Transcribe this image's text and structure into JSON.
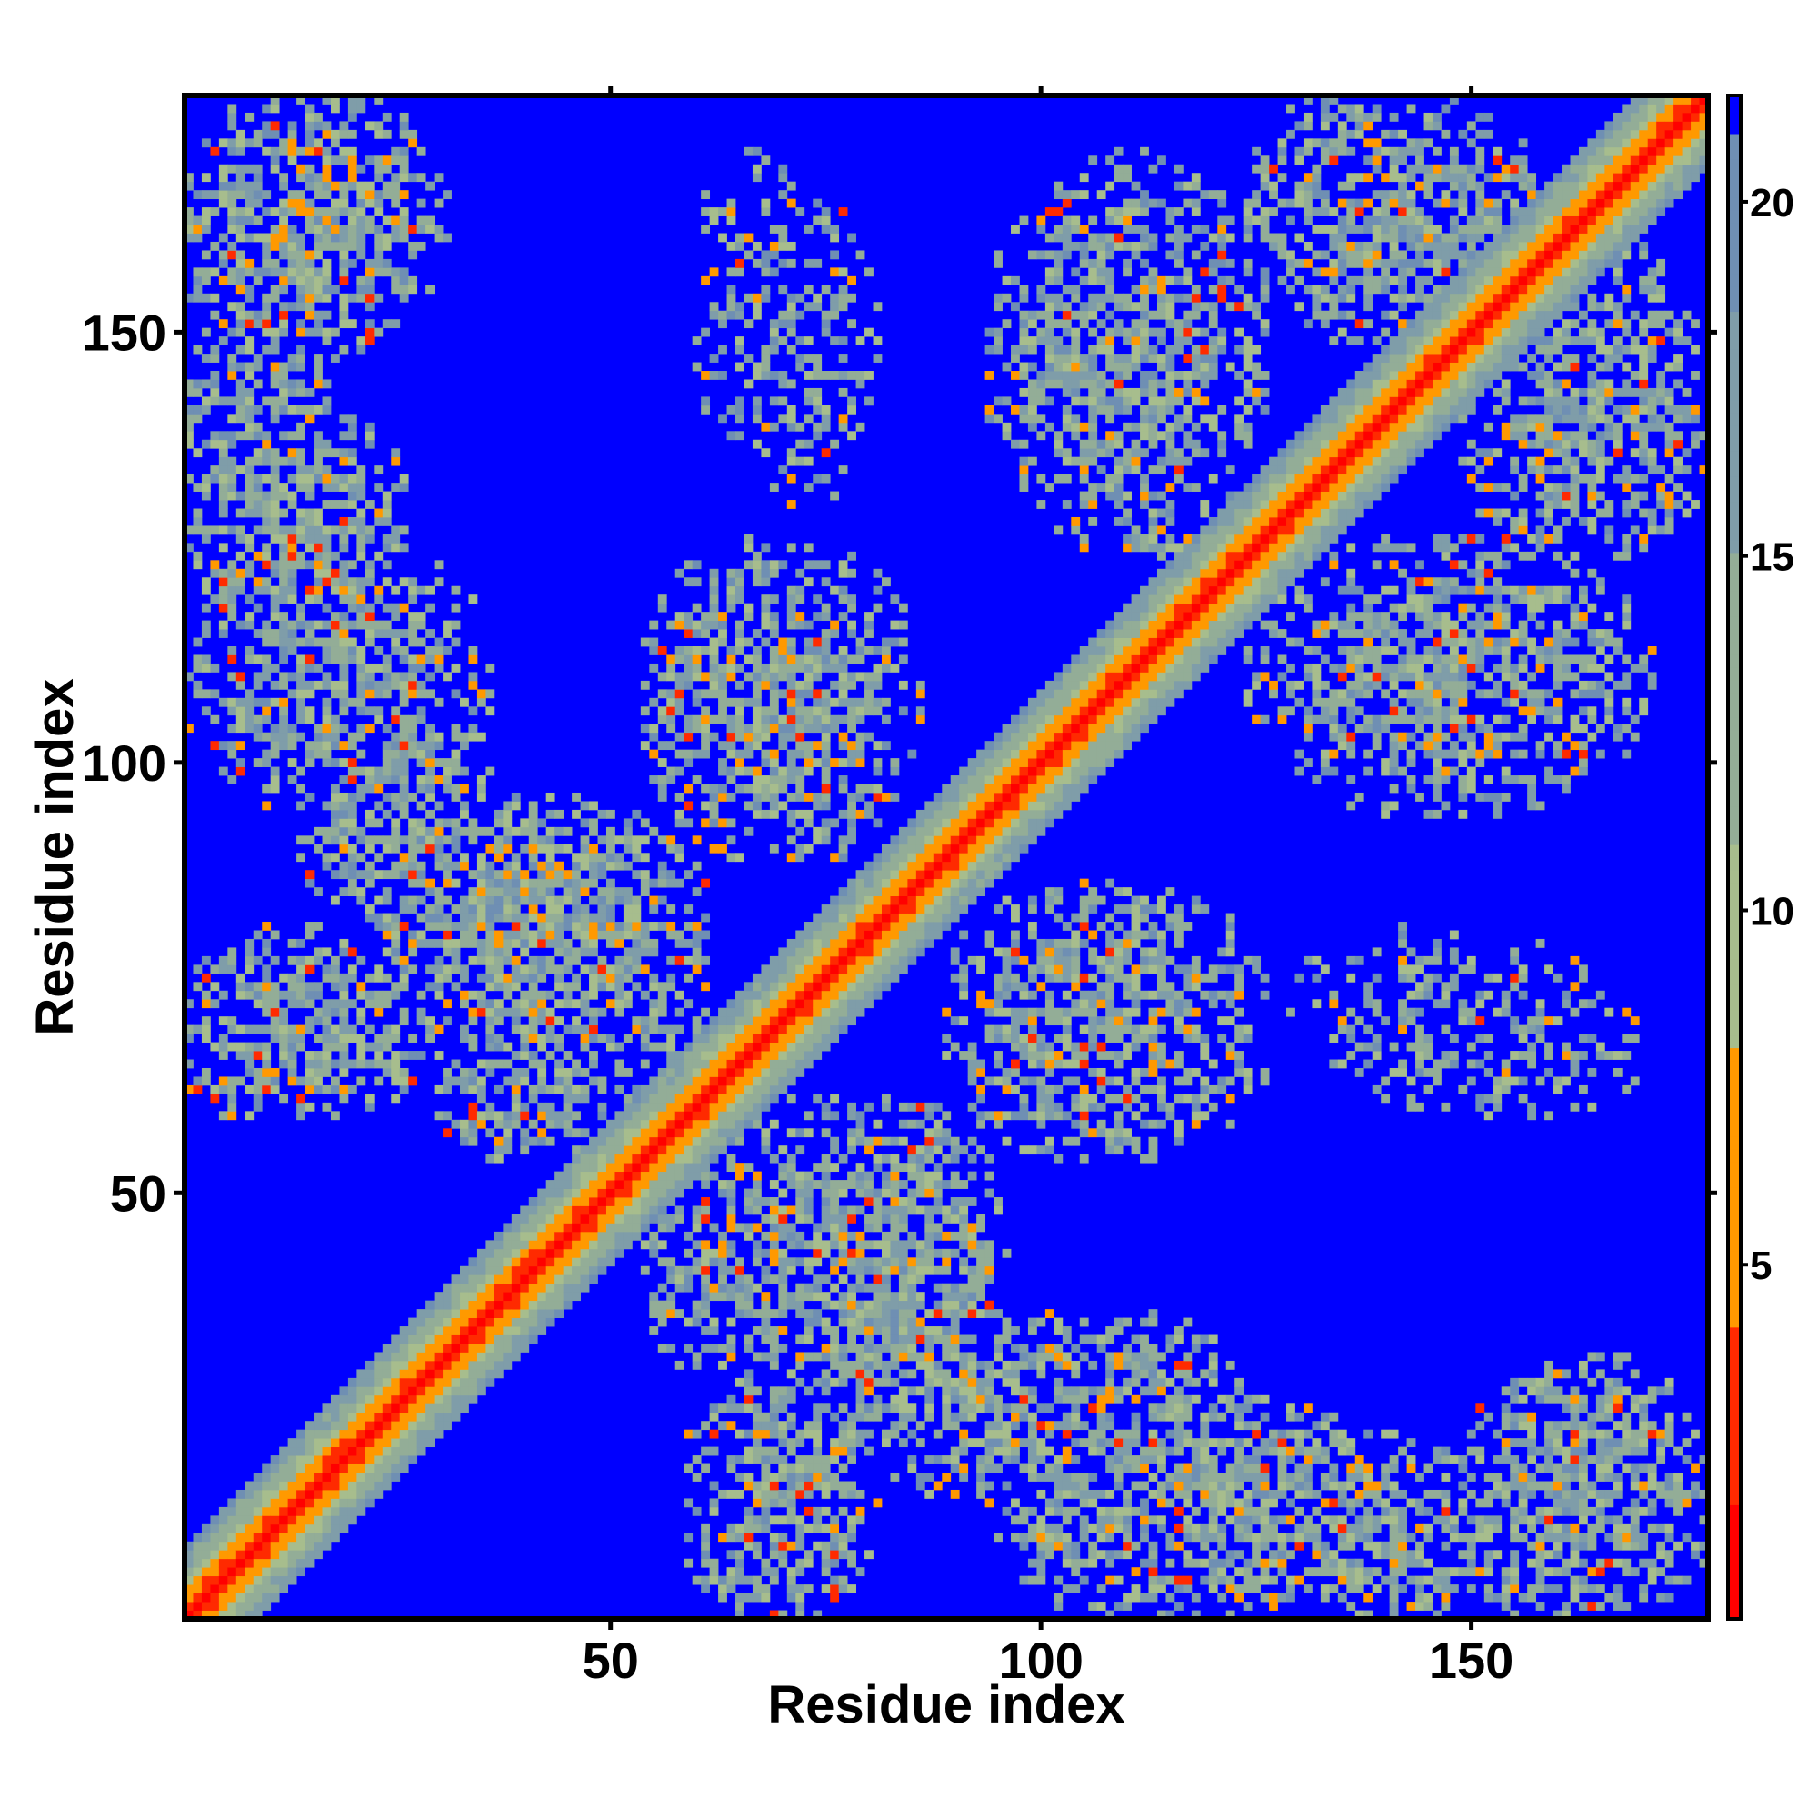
{
  "chart_data": {
    "type": "heatmap",
    "title": "",
    "xlabel": "Residue index",
    "ylabel": "Residue index",
    "x_range": [
      1,
      177
    ],
    "y_range": [
      1,
      177
    ],
    "x_ticks": [
      "50",
      "100",
      "150"
    ],
    "y_ticks": [
      "50",
      "100",
      "150"
    ],
    "colorbar": {
      "range": [
        0,
        21.5
      ],
      "ticks": [
        "5",
        "10",
        "15",
        "20"
      ],
      "colors": {
        "near": "#ff0000",
        "mid": "#ff9900",
        "sage": "#a7bd8d",
        "steel": "#6f8fb3",
        "far": "#0000ff"
      }
    },
    "matrix_description_values": {
      "diagonal_distance": 0,
      "cap_distance": 21.5
    },
    "contact_regions": [
      {
        "x": [
          1,
          30
        ],
        "y": [
          150,
          177
        ],
        "level": "medium"
      },
      {
        "x": [
          1,
          15
        ],
        "y": [
          125,
          150
        ],
        "level": "medium"
      },
      {
        "x": [
          1,
          35
        ],
        "y": [
          95,
          125
        ],
        "level": "medium"
      },
      {
        "x": [
          20,
          60
        ],
        "y": [
          70,
          95
        ],
        "level": "strong"
      },
      {
        "x": [
          1,
          15
        ],
        "y": [
          60,
          75
        ],
        "level": "medium"
      },
      {
        "x": [
          30,
          50
        ],
        "y": [
          55,
          70
        ],
        "level": "medium"
      },
      {
        "x": [
          55,
          80
        ],
        "y": [
          90,
          125
        ],
        "level": "medium"
      },
      {
        "x": [
          60,
          75
        ],
        "y": [
          135,
          170
        ],
        "level": "weak"
      },
      {
        "x": [
          95,
          125
        ],
        "y": [
          125,
          170
        ],
        "level": "medium"
      },
      {
        "x": [
          125,
          160
        ],
        "y": [
          150,
          177
        ],
        "level": "medium"
      },
      {
        "x": [
          150,
          177
        ],
        "y": [
          125,
          150
        ],
        "level": "medium"
      },
      {
        "x": [
          130,
          160
        ],
        "y": [
          95,
          125
        ],
        "level": "medium"
      },
      {
        "x": [
          90,
          125
        ],
        "y": [
          60,
          85
        ],
        "level": "medium"
      },
      {
        "x": [
          130,
          165
        ],
        "y": [
          65,
          80
        ],
        "level": "weak"
      },
      {
        "x": [
          60,
          95
        ],
        "y": [
          30,
          60
        ],
        "level": "medium"
      },
      {
        "x": [
          80,
          110
        ],
        "y": [
          15,
          35
        ],
        "level": "medium"
      },
      {
        "x": [
          60,
          80
        ],
        "y": [
          1,
          30
        ],
        "level": "medium"
      },
      {
        "x": [
          105,
          145
        ],
        "y": [
          1,
          25
        ],
        "level": "medium"
      },
      {
        "x": [
          145,
          177
        ],
        "y": [
          1,
          25
        ],
        "level": "medium"
      }
    ]
  }
}
